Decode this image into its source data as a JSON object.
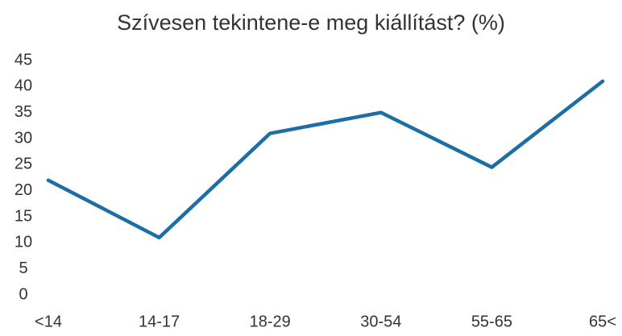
{
  "chart_data": {
    "type": "line",
    "title": "Szívesen tekintene-e meg kiállítást? (%)",
    "categories": [
      "<14",
      "14-17",
      "18-29",
      "30-54",
      "55-65",
      "65<"
    ],
    "series": [
      {
        "name": "Szívesen tekintene-e meg kiállítást? (%)",
        "color": "#1c6ea4",
        "values": [
          22,
          11,
          31,
          35,
          24.5,
          41
        ]
      }
    ],
    "ylim": [
      0,
      45
    ],
    "yticks": [
      0,
      5,
      10,
      15,
      20,
      25,
      30,
      35,
      40,
      45
    ],
    "grid": false
  }
}
